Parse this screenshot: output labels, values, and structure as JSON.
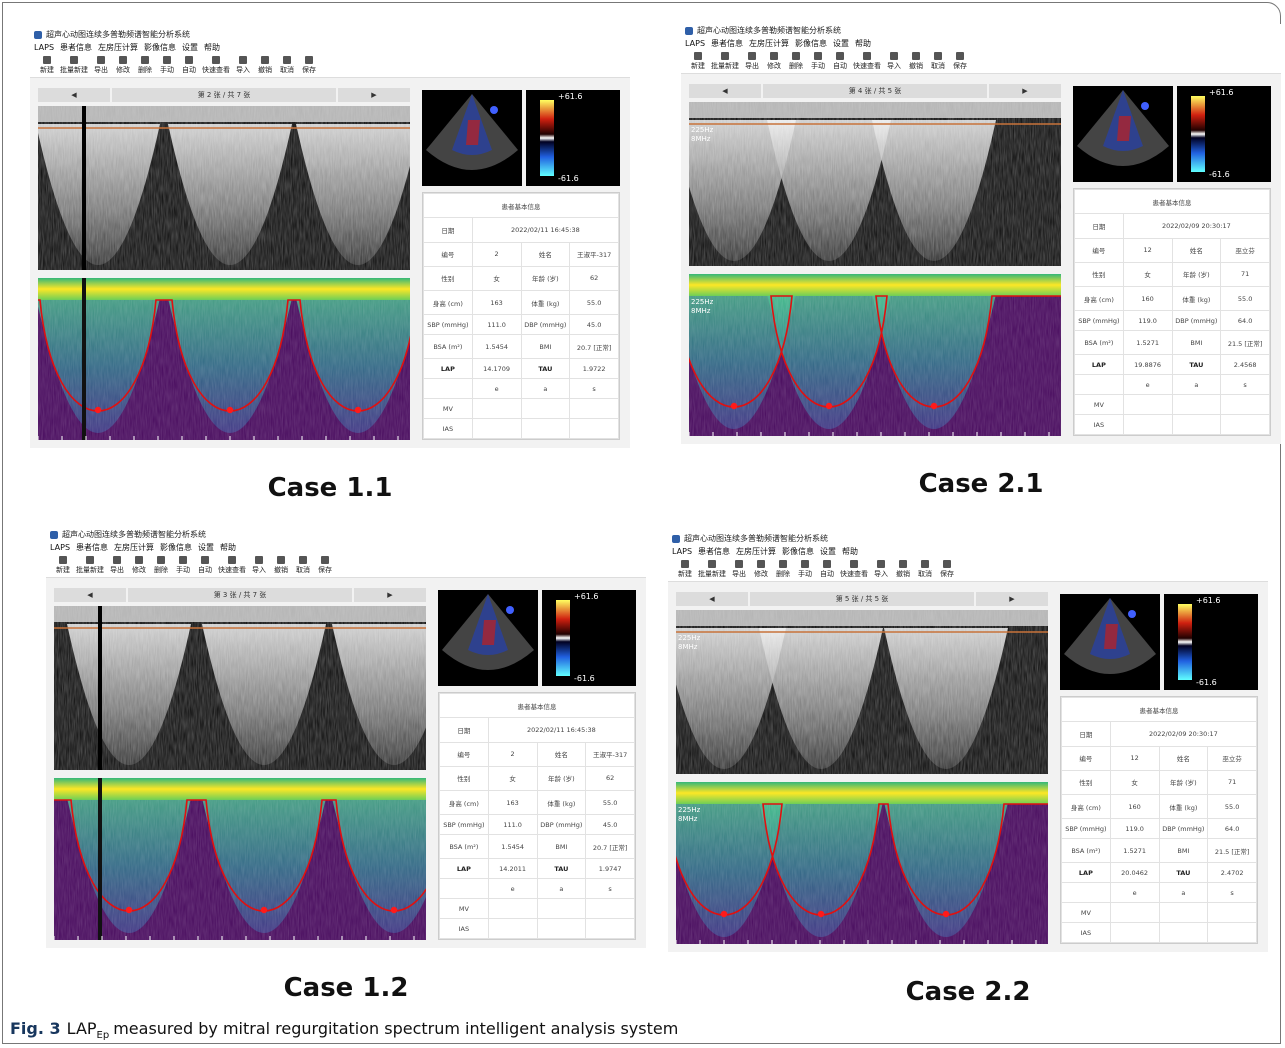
{
  "panels": [
    {
      "case": "Case 1.1",
      "window_title": "超声心动图连续多普勒频谱智能分析系统",
      "menu": [
        "LAPS",
        "患者信息",
        "左房压计算",
        "影像信息",
        "设置",
        "帮助"
      ],
      "toolbar": [
        "新建",
        "批量新建",
        "导出",
        "修改",
        "删除",
        "手动",
        "自动",
        "快速查看",
        "导入",
        "撤销",
        "取消",
        "保存"
      ],
      "nav": "第 2 张 / 共 7 张",
      "colorbar": [
        "+61.6",
        "-61.6"
      ],
      "table": {
        "title": "患者基本信息",
        "rows": [
          [
            "日期",
            "2022/02/11 16:45:38"
          ],
          [
            "编号",
            "2",
            "姓名",
            "王淑平-317"
          ],
          [
            "性别",
            "女",
            "年龄 (岁)",
            "62"
          ],
          [
            "身高 (cm)",
            "163",
            "体重 (kg)",
            "55.0"
          ],
          [
            "SBP (mmHg)",
            "111.0",
            "DBP (mmHg)",
            "45.0"
          ],
          [
            "BSA (m²)",
            "1.5454",
            "BMI",
            "20.7 [正常]"
          ],
          [
            "LAP",
            "14.1709",
            "TAU",
            "1.9722"
          ]
        ],
        "wave_labels": [
          "e",
          "a",
          "s"
        ],
        "measure_rows": [
          "MV",
          "IAS"
        ]
      }
    },
    {
      "case": "Case 2.1",
      "window_title": "超声心动图连续多普勒频谱智能分析系统",
      "menu": [
        "LAPS",
        "患者信息",
        "左房压计算",
        "影像信息",
        "设置",
        "帮助"
      ],
      "toolbar": [
        "新建",
        "批量新建",
        "导出",
        "修改",
        "删除",
        "手动",
        "自动",
        "快速查看",
        "导入",
        "撤销",
        "取消",
        "保存"
      ],
      "nav": "第 4 张 / 共 5 张",
      "colorbar": [
        "+61.6",
        "-61.6"
      ],
      "overlay": [
        "225Hz",
        "8MHz"
      ],
      "table": {
        "title": "患者基本信息",
        "rows": [
          [
            "日期",
            "2022/02/09 20:30:17"
          ],
          [
            "编号",
            "12",
            "姓名",
            "巫立芬"
          ],
          [
            "性别",
            "女",
            "年龄 (岁)",
            "71"
          ],
          [
            "身高 (cm)",
            "160",
            "体重 (kg)",
            "55.0"
          ],
          [
            "SBP (mmHg)",
            "119.0",
            "DBP (mmHg)",
            "64.0"
          ],
          [
            "BSA (m²)",
            "1.5271",
            "BMI",
            "21.5 [正常]"
          ],
          [
            "LAP",
            "19.8876",
            "TAU",
            "2.4568"
          ]
        ],
        "wave_labels": [
          "e",
          "a",
          "s"
        ],
        "measure_rows": [
          "MV",
          "IAS"
        ]
      }
    },
    {
      "case": "Case 1.2",
      "window_title": "超声心动图连续多普勒频谱智能分析系统",
      "menu": [
        "LAPS",
        "患者信息",
        "左房压计算",
        "影像信息",
        "设置",
        "帮助"
      ],
      "toolbar": [
        "新建",
        "批量新建",
        "导出",
        "修改",
        "删除",
        "手动",
        "自动",
        "快速查看",
        "导入",
        "撤销",
        "取消",
        "保存"
      ],
      "nav": "第 3 张 / 共 7 张",
      "colorbar": [
        "+61.6",
        "-61.6"
      ],
      "table": {
        "title": "患者基本信息",
        "rows": [
          [
            "日期",
            "2022/02/11 16:45:38"
          ],
          [
            "编号",
            "2",
            "姓名",
            "王淑平-317"
          ],
          [
            "性别",
            "女",
            "年龄 (岁)",
            "62"
          ],
          [
            "身高 (cm)",
            "163",
            "体重 (kg)",
            "55.0"
          ],
          [
            "SBP (mmHg)",
            "111.0",
            "DBP (mmHg)",
            "45.0"
          ],
          [
            "BSA (m²)",
            "1.5454",
            "BMI",
            "20.7 [正常]"
          ],
          [
            "LAP",
            "14.2011",
            "TAU",
            "1.9747"
          ]
        ],
        "wave_labels": [
          "e",
          "a",
          "s"
        ],
        "measure_rows": [
          "MV",
          "IAS"
        ]
      }
    },
    {
      "case": "Case 2.2",
      "window_title": "超声心动图连续多普勒频谱智能分析系统",
      "menu": [
        "LAPS",
        "患者信息",
        "左房压计算",
        "影像信息",
        "设置",
        "帮助"
      ],
      "toolbar": [
        "新建",
        "批量新建",
        "导出",
        "修改",
        "删除",
        "手动",
        "自动",
        "快速查看",
        "导入",
        "撤销",
        "取消",
        "保存"
      ],
      "nav": "第 5 张 / 共 5 张",
      "colorbar": [
        "+61.6",
        "-61.6"
      ],
      "overlay": [
        "225Hz",
        "8MHz"
      ],
      "table": {
        "title": "患者基本信息",
        "rows": [
          [
            "日期",
            "2022/02/09 20:30:17"
          ],
          [
            "编号",
            "12",
            "姓名",
            "巫立芬"
          ],
          [
            "性别",
            "女",
            "年龄 (岁)",
            "71"
          ],
          [
            "身高 (cm)",
            "160",
            "体重 (kg)",
            "55.0"
          ],
          [
            "SBP (mmHg)",
            "119.0",
            "DBP (mmHg)",
            "64.0"
          ],
          [
            "BSA (m²)",
            "1.5271",
            "BMI",
            "21.5 [正常]"
          ],
          [
            "LAP",
            "20.0462",
            "TAU",
            "2.4702"
          ]
        ],
        "wave_labels": [
          "e",
          "a",
          "s"
        ],
        "measure_rows": [
          "MV",
          "IAS"
        ]
      }
    }
  ],
  "caption": {
    "label": "Fig. 3",
    "symbol": "LAP",
    "subscript": "Ep",
    "text": "measured by mitral regurgitation spectrum intelligent analysis system"
  }
}
